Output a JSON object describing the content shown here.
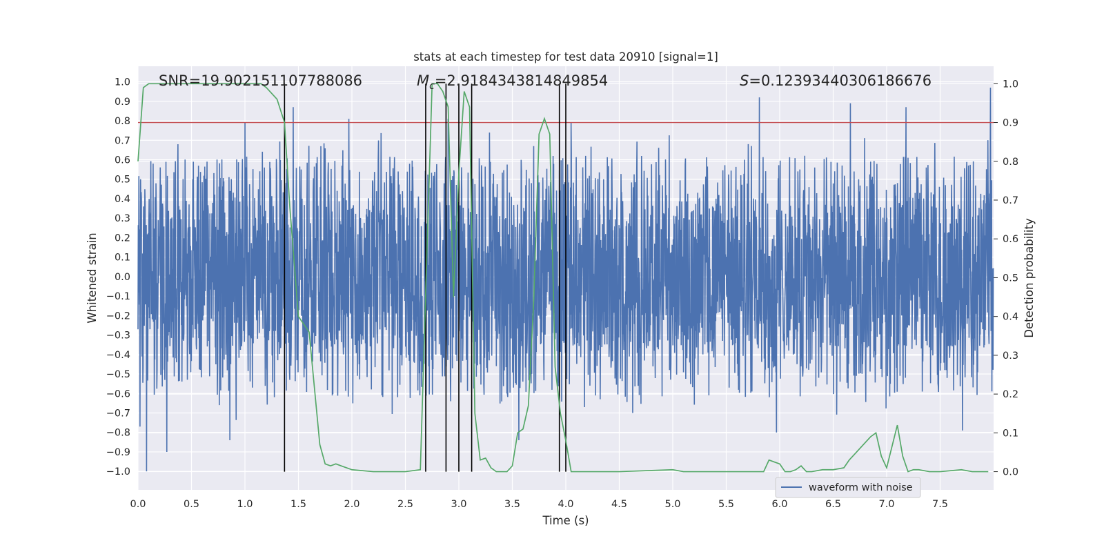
{
  "chart_data": {
    "type": "line",
    "title": "stats at each timestep for test data 20910 [signal=1]",
    "xlabel": "Time (s)",
    "ylabel": "Whitened strain",
    "y2label": "Detection probability",
    "xlim": [
      0.0,
      8.0
    ],
    "ylim": [
      -1.095,
      1.08
    ],
    "y2lim": [
      -0.047,
      1.045
    ],
    "x_ticks": [
      "0.0",
      "0.5",
      "1.0",
      "1.5",
      "2.0",
      "2.5",
      "3.0",
      "3.5",
      "4.0",
      "4.5",
      "5.0",
      "5.5",
      "6.0",
      "6.5",
      "7.0",
      "7.5"
    ],
    "y_ticks": [
      "1.0",
      "0.9",
      "0.8",
      "0.7",
      "0.6",
      "0.5",
      "0.4",
      "0.3",
      "0.2",
      "0.1",
      "0.0",
      "-0.1",
      "-0.2",
      "-0.3",
      "-0.4",
      "-0.5",
      "-0.6",
      "-0.7",
      "-0.8",
      "-0.9",
      "-1.0"
    ],
    "y2_ticks": [
      "1.0",
      "0.9",
      "0.8",
      "0.7",
      "0.6",
      "0.5",
      "0.4",
      "0.3",
      "0.2",
      "0.1",
      "0.0"
    ],
    "grid": true,
    "legend": {
      "position": "lower-right",
      "entries": [
        "waveform with noise"
      ]
    },
    "annotations": {
      "snr": "SNR=19.902151107788086",
      "mc_symbol": "M",
      "mc_sub": "c",
      "mc_value": "=2.9184343814849854",
      "s_symbol": "S",
      "s_value": "=0.12393440306186676"
    },
    "threshold": {
      "value": 0.9,
      "axis": "right",
      "color": "#c44e52"
    },
    "event_lines_x": [
      1.37,
      2.69,
      2.88,
      3.0,
      3.12,
      3.94,
      4.0
    ],
    "series": [
      {
        "name": "waveform with noise",
        "axis": "left",
        "color": "#4c72b0",
        "envelope": {
          "core_abs": 0.37,
          "typical_max": 0.62,
          "typical_min": -0.62,
          "outlier_max": 0.92,
          "outlier_min": -1.0
        },
        "peaks": [
          {
            "x": 0.02,
            "y": -0.77
          },
          {
            "x": 0.08,
            "y": -1.0
          },
          {
            "x": 0.27,
            "y": -0.9
          },
          {
            "x": 0.86,
            "y": -0.84
          },
          {
            "x": 1.0,
            "y": 0.79
          },
          {
            "x": 1.45,
            "y": 0.87
          },
          {
            "x": 1.97,
            "y": 0.81
          },
          {
            "x": 2.9,
            "y": 0.81
          },
          {
            "x": 3.56,
            "y": -0.84
          },
          {
            "x": 4.05,
            "y": 0.79
          },
          {
            "x": 5.81,
            "y": 0.92
          },
          {
            "x": 5.97,
            "y": -0.8
          },
          {
            "x": 6.66,
            "y": 0.89
          },
          {
            "x": 7.18,
            "y": 0.87
          },
          {
            "x": 7.71,
            "y": -0.79
          },
          {
            "x": 7.97,
            "y": 0.97
          }
        ]
      },
      {
        "name": "detection probability",
        "axis": "right",
        "color": "#55a868",
        "x": [
          0.0,
          0.05,
          0.1,
          0.2,
          0.4,
          0.6,
          0.8,
          1.0,
          1.1,
          1.15,
          1.2,
          1.3,
          1.37,
          1.42,
          1.5,
          1.6,
          1.7,
          1.75,
          1.8,
          1.85,
          1.9,
          2.0,
          2.2,
          2.5,
          2.64,
          2.7,
          2.75,
          2.8,
          2.85,
          2.9,
          2.95,
          3.0,
          3.05,
          3.1,
          3.15,
          3.2,
          3.25,
          3.3,
          3.35,
          3.4,
          3.45,
          3.5,
          3.55,
          3.6,
          3.65,
          3.7,
          3.75,
          3.8,
          3.85,
          3.9,
          3.95,
          4.0,
          4.05,
          4.1,
          4.15,
          4.2,
          4.3,
          4.4,
          4.5,
          5.0,
          5.1,
          5.2,
          5.5,
          5.85,
          5.9,
          5.95,
          6.0,
          6.05,
          6.1,
          6.15,
          6.2,
          6.25,
          6.3,
          6.4,
          6.5,
          6.6,
          6.65,
          6.7,
          6.75,
          6.85,
          6.9,
          6.95,
          7.0,
          7.05,
          7.1,
          7.15,
          7.2,
          7.25,
          7.3,
          7.4,
          7.5,
          7.7,
          7.8,
          7.9,
          7.95
        ],
        "y": [
          0.8,
          0.99,
          1.0,
          1.0,
          1.0,
          1.0,
          1.0,
          1.0,
          1.0,
          1.0,
          0.99,
          0.96,
          0.9,
          0.68,
          0.4,
          0.36,
          0.07,
          0.02,
          0.015,
          0.02,
          0.015,
          0.005,
          0.0,
          0.0,
          0.005,
          0.55,
          1.0,
          1.0,
          0.98,
          0.94,
          0.45,
          0.77,
          0.98,
          0.94,
          0.15,
          0.03,
          0.035,
          0.01,
          0.0,
          0.0,
          0.0,
          0.015,
          0.1,
          0.11,
          0.17,
          0.44,
          0.87,
          0.91,
          0.87,
          0.27,
          0.15,
          0.08,
          0.0,
          0.0,
          0.0,
          0.0,
          0.0,
          0.0,
          0.0,
          0.005,
          0.0,
          0.0,
          0.0,
          0.0,
          0.03,
          0.025,
          0.02,
          0.0,
          0.0,
          0.005,
          0.015,
          0.0,
          0.0,
          0.005,
          0.005,
          0.01,
          0.03,
          0.045,
          0.06,
          0.09,
          0.1,
          0.04,
          0.01,
          0.065,
          0.12,
          0.04,
          0.0,
          0.005,
          0.005,
          0.0,
          0.0,
          0.005,
          0.0,
          0.0,
          0.0
        ]
      }
    ]
  }
}
